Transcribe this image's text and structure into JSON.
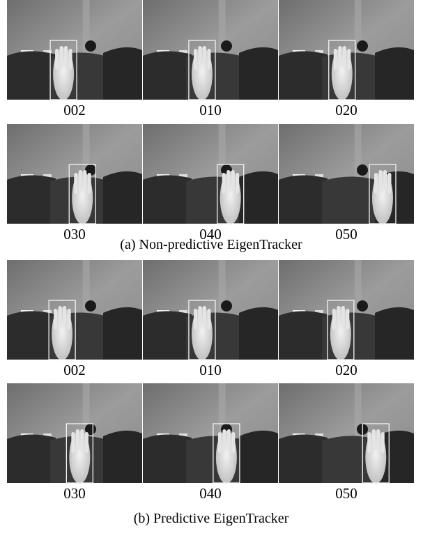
{
  "panels": [
    {
      "caption": "(a) Non-predictive EigenTracker",
      "frames": [
        [
          "002",
          "010",
          "020"
        ],
        [
          "030",
          "040",
          "050"
        ]
      ]
    },
    {
      "caption": "(b) Predictive EigenTracker",
      "frames": [
        [
          "002",
          "010",
          "020"
        ],
        [
          "030",
          "040",
          "050"
        ]
      ]
    }
  ]
}
